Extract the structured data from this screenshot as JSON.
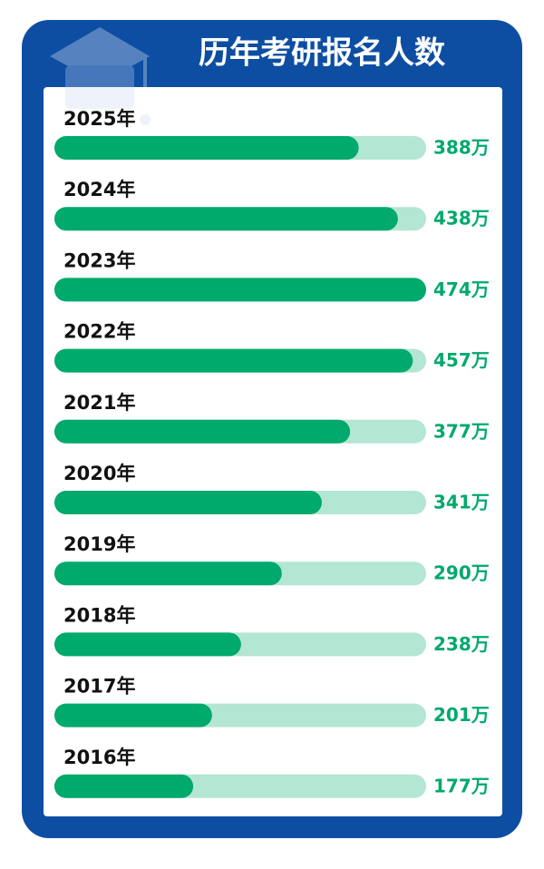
{
  "chart_data": {
    "type": "bar",
    "orientation": "horizontal",
    "title": "历年考研报名人数",
    "categories": [
      "2025年",
      "2024年",
      "2023年",
      "2022年",
      "2021年",
      "2020年",
      "2019年",
      "2018年",
      "2017年",
      "2016年"
    ],
    "values": [
      388,
      438,
      474,
      457,
      377,
      341,
      290,
      238,
      201,
      177
    ],
    "value_labels": [
      "388万",
      "438万",
      "474万",
      "457万",
      "377万",
      "341万",
      "290万",
      "238万",
      "201万",
      "177万"
    ],
    "color": "#00a96c",
    "xlim": [
      0,
      474
    ]
  }
}
